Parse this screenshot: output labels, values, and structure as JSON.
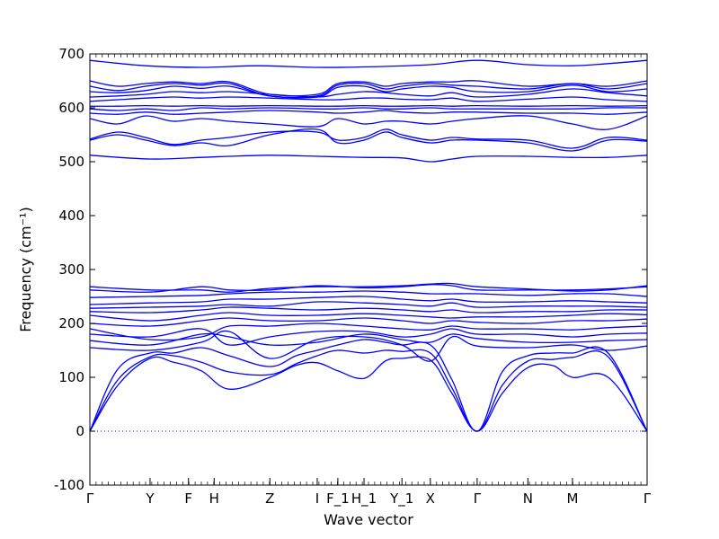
{
  "chart_data": {
    "type": "line",
    "xlabel": "Wave vector",
    "ylabel": "Frequency (cm⁻¹)",
    "ylim": [
      -100,
      700
    ],
    "xlim": [
      0,
      1
    ],
    "y_ticks": [
      -100,
      0,
      100,
      200,
      300,
      400,
      500,
      600,
      700
    ],
    "x_ticks": [
      {
        "label": "Γ",
        "x": 0.0
      },
      {
        "label": "Y",
        "x": 0.108
      },
      {
        "label": "F",
        "x": 0.177
      },
      {
        "label": "H",
        "x": 0.223
      },
      {
        "label": "Z",
        "x": 0.323
      },
      {
        "label": "I",
        "x": 0.408
      },
      {
        "label": "F_1",
        "x": 0.445
      },
      {
        "label": "H_1",
        "x": 0.492
      },
      {
        "label": "Y_1",
        "x": 0.56
      },
      {
        "label": "X",
        "x": 0.611
      },
      {
        "label": "Γ",
        "x": 0.695
      },
      {
        "label": "N",
        "x": 0.786
      },
      {
        "label": "M",
        "x": 0.866
      },
      {
        "label": "Γ",
        "x": 1.0
      }
    ],
    "zero_line": {
      "y": 0,
      "style": "dotted"
    },
    "series_color": "#0000ff",
    "series": [
      {
        "x": [
          0,
          0.05,
          0.108,
          0.15,
          0.2,
          0.25,
          0.323,
          0.37,
          0.408,
          0.445,
          0.492,
          0.53,
          0.56,
          0.611,
          0.65,
          0.695,
          0.74,
          0.786,
          0.83,
          0.866,
          0.93,
          1.0
        ],
        "values": [
          0,
          85,
          135,
          128,
          112,
          78,
          100,
          122,
          127,
          112,
          98,
          130,
          135,
          132,
          70,
          0,
          70,
          118,
          122,
          100,
          100,
          0
        ]
      },
      {
        "x": [
          0,
          0.05,
          0.108,
          0.15,
          0.2,
          0.25,
          0.323,
          0.37,
          0.408,
          0.445,
          0.492,
          0.53,
          0.56,
          0.611,
          0.65,
          0.695,
          0.74,
          0.786,
          0.83,
          0.866,
          0.93,
          1.0
        ],
        "values": [
          0,
          95,
          138,
          140,
          128,
          110,
          105,
          125,
          140,
          150,
          145,
          150,
          148,
          145,
          80,
          0,
          85,
          130,
          133,
          137,
          138,
          0
        ]
      },
      {
        "x": [
          0,
          0.05,
          0.108,
          0.15,
          0.2,
          0.25,
          0.323,
          0.37,
          0.408,
          0.445,
          0.492,
          0.53,
          0.56,
          0.611,
          0.65,
          0.695,
          0.74,
          0.786,
          0.83,
          0.866,
          0.93,
          1.0
        ],
        "values": [
          0,
          115,
          145,
          145,
          155,
          140,
          120,
          140,
          150,
          160,
          170,
          165,
          160,
          160,
          95,
          0,
          110,
          140,
          145,
          145,
          145,
          0
        ]
      },
      {
        "x": [
          0,
          0.108,
          0.2,
          0.25,
          0.323,
          0.408,
          0.492,
          0.56,
          0.611,
          0.65,
          0.695,
          0.786,
          0.866,
          0.93,
          1.0
        ],
        "values": [
          155,
          150,
          165,
          185,
          135,
          170,
          175,
          160,
          130,
          175,
          158,
          155,
          160,
          150,
          158
        ]
      },
      {
        "x": [
          0,
          0.108,
          0.2,
          0.25,
          0.323,
          0.408,
          0.492,
          0.56,
          0.611,
          0.65,
          0.695,
          0.786,
          0.866,
          0.93,
          1.0
        ],
        "values": [
          168,
          160,
          180,
          175,
          160,
          165,
          180,
          170,
          165,
          180,
          172,
          165,
          165,
          168,
          170
        ]
      },
      {
        "x": [
          0,
          0.108,
          0.2,
          0.25,
          0.323,
          0.408,
          0.492,
          0.56,
          0.611,
          0.65,
          0.695,
          0.786,
          0.866,
          0.93,
          1.0
        ],
        "values": [
          180,
          175,
          190,
          160,
          175,
          185,
          185,
          175,
          180,
          190,
          180,
          180,
          175,
          180,
          182
        ]
      },
      {
        "x": [
          0,
          0.108,
          0.2,
          0.25,
          0.323,
          0.408,
          0.492,
          0.56,
          0.611,
          0.65,
          0.695,
          0.786,
          0.866,
          0.93,
          1.0
        ],
        "values": [
          190,
          170,
          175,
          195,
          195,
          200,
          195,
          190,
          188,
          195,
          190,
          190,
          188,
          192,
          195
        ]
      },
      {
        "x": [
          0,
          0.108,
          0.2,
          0.25,
          0.323,
          0.408,
          0.492,
          0.56,
          0.611,
          0.65,
          0.695,
          0.786,
          0.866,
          0.93,
          1.0
        ],
        "values": [
          200,
          195,
          205,
          210,
          205,
          205,
          210,
          205,
          200,
          205,
          202,
          200,
          205,
          205,
          208
        ]
      },
      {
        "x": [
          0,
          0.108,
          0.2,
          0.25,
          0.323,
          0.408,
          0.492,
          0.56,
          0.611,
          0.65,
          0.695,
          0.786,
          0.866,
          0.93,
          1.0
        ],
        "values": [
          215,
          205,
          215,
          220,
          215,
          215,
          218,
          215,
          212,
          210,
          212,
          212,
          215,
          218,
          216
        ]
      },
      {
        "x": [
          0,
          0.108,
          0.2,
          0.25,
          0.323,
          0.408,
          0.492,
          0.56,
          0.611,
          0.65,
          0.695,
          0.786,
          0.866,
          0.93,
          1.0
        ],
        "values": [
          222,
          220,
          225,
          230,
          228,
          225,
          228,
          225,
          222,
          225,
          220,
          222,
          222,
          225,
          225
        ]
      },
      {
        "x": [
          0,
          0.108,
          0.2,
          0.25,
          0.323,
          0.408,
          0.492,
          0.56,
          0.611,
          0.65,
          0.695,
          0.786,
          0.866,
          0.93,
          1.0
        ],
        "values": [
          228,
          230,
          232,
          235,
          232,
          240,
          238,
          235,
          232,
          238,
          230,
          232,
          232,
          232,
          230
        ]
      },
      {
        "x": [
          0,
          0.108,
          0.2,
          0.25,
          0.323,
          0.408,
          0.492,
          0.56,
          0.611,
          0.65,
          0.695,
          0.786,
          0.866,
          0.93,
          1.0
        ],
        "values": [
          235,
          238,
          240,
          245,
          245,
          248,
          250,
          245,
          242,
          245,
          240,
          240,
          242,
          240,
          238
        ]
      },
      {
        "x": [
          0,
          0.108,
          0.2,
          0.25,
          0.323,
          0.408,
          0.492,
          0.56,
          0.611,
          0.65,
          0.695,
          0.786,
          0.866,
          0.93,
          1.0
        ],
        "values": [
          248,
          250,
          252,
          255,
          258,
          258,
          260,
          258,
          255,
          255,
          255,
          252,
          255,
          255,
          250
        ]
      },
      {
        "x": [
          0,
          0.108,
          0.2,
          0.25,
          0.323,
          0.408,
          0.492,
          0.56,
          0.611,
          0.65,
          0.695,
          0.786,
          0.866,
          0.93,
          1.0
        ],
        "values": [
          262,
          258,
          268,
          262,
          262,
          270,
          266,
          268,
          272,
          270,
          262,
          262,
          262,
          264,
          268
        ]
      },
      {
        "x": [
          0,
          0.108,
          0.2,
          0.25,
          0.323,
          0.408,
          0.492,
          0.56,
          0.611,
          0.65,
          0.695,
          0.786,
          0.866,
          0.93,
          1.0
        ],
        "values": [
          268,
          262,
          262,
          258,
          265,
          268,
          268,
          270,
          273,
          274,
          268,
          264,
          260,
          262,
          270
        ]
      },
      {
        "x": [
          0,
          0.108,
          0.2,
          0.25,
          0.323,
          0.408,
          0.492,
          0.56,
          0.611,
          0.65,
          0.695,
          0.786,
          0.866,
          0.93,
          1.0
        ],
        "values": [
          512,
          505,
          508,
          510,
          512,
          510,
          508,
          507,
          500,
          505,
          510,
          510,
          508,
          508,
          512
        ]
      },
      {
        "x": [
          0,
          0.05,
          0.1,
          0.15,
          0.2,
          0.25,
          0.323,
          0.408,
          0.445,
          0.492,
          0.53,
          0.56,
          0.611,
          0.65,
          0.695,
          0.786,
          0.866,
          0.93,
          1.0
        ],
        "values": [
          540,
          550,
          540,
          530,
          535,
          530,
          550,
          560,
          535,
          540,
          555,
          545,
          535,
          540,
          540,
          535,
          520,
          540,
          538
        ]
      },
      {
        "x": [
          0,
          0.05,
          0.1,
          0.15,
          0.2,
          0.25,
          0.323,
          0.408,
          0.445,
          0.492,
          0.53,
          0.56,
          0.611,
          0.65,
          0.695,
          0.786,
          0.866,
          0.93,
          1.0
        ],
        "values": [
          542,
          555,
          545,
          532,
          540,
          545,
          555,
          555,
          540,
          545,
          560,
          550,
          540,
          545,
          542,
          540,
          525,
          545,
          540
        ]
      },
      {
        "x": [
          0,
          0.05,
          0.1,
          0.15,
          0.2,
          0.25,
          0.323,
          0.408,
          0.445,
          0.492,
          0.53,
          0.56,
          0.611,
          0.65,
          0.695,
          0.786,
          0.866,
          0.93,
          1.0
        ],
        "values": [
          580,
          570,
          585,
          575,
          580,
          575,
          570,
          565,
          580,
          570,
          575,
          575,
          570,
          575,
          580,
          585,
          570,
          560,
          585
        ]
      },
      {
        "x": [
          0,
          0.05,
          0.1,
          0.15,
          0.2,
          0.25,
          0.323,
          0.408,
          0.445,
          0.492,
          0.53,
          0.56,
          0.611,
          0.65,
          0.695,
          0.786,
          0.866,
          0.93,
          1.0
        ],
        "values": [
          590,
          588,
          592,
          588,
          590,
          592,
          595,
          592,
          590,
          592,
          595,
          592,
          590,
          592,
          592,
          590,
          590,
          588,
          592
        ]
      },
      {
        "x": [
          0,
          0.05,
          0.1,
          0.15,
          0.2,
          0.25,
          0.323,
          0.408,
          0.445,
          0.492,
          0.53,
          0.56,
          0.611,
          0.65,
          0.695,
          0.786,
          0.866,
          0.93,
          1.0
        ],
        "values": [
          598,
          595,
          598,
          595,
          600,
          598,
          600,
          598,
          598,
          600,
          598,
          598,
          600,
          598,
          598,
          598,
          598,
          600,
          600
        ]
      },
      {
        "x": [
          0,
          0.05,
          0.1,
          0.15,
          0.2,
          0.25,
          0.323,
          0.408,
          0.445,
          0.492,
          0.53,
          0.56,
          0.611,
          0.65,
          0.695,
          0.786,
          0.866,
          0.93,
          1.0
        ],
        "values": [
          603,
          603,
          604,
          603,
          604,
          603,
          604,
          603,
          603,
          604,
          603,
          603,
          604,
          603,
          604,
          603,
          604,
          603,
          604
        ]
      },
      {
        "x": [
          0,
          0.05,
          0.1,
          0.15,
          0.2,
          0.25,
          0.323,
          0.408,
          0.445,
          0.492,
          0.53,
          0.56,
          0.611,
          0.65,
          0.695,
          0.786,
          0.866,
          0.93,
          1.0
        ],
        "values": [
          612,
          615,
          618,
          620,
          618,
          620,
          618,
          615,
          615,
          618,
          618,
          616,
          615,
          618,
          612,
          616,
          620,
          615,
          612
        ]
      },
      {
        "x": [
          0,
          0.05,
          0.1,
          0.15,
          0.2,
          0.25,
          0.323,
          0.408,
          0.445,
          0.492,
          0.53,
          0.56,
          0.611,
          0.65,
          0.695,
          0.786,
          0.866,
          0.93,
          1.0
        ],
        "values": [
          620,
          622,
          625,
          630,
          628,
          630,
          625,
          620,
          625,
          630,
          628,
          625,
          622,
          628,
          620,
          625,
          635,
          628,
          622
        ]
      },
      {
        "x": [
          0,
          0.05,
          0.1,
          0.15,
          0.2,
          0.25,
          0.323,
          0.408,
          0.445,
          0.492,
          0.53,
          0.56,
          0.611,
          0.65,
          0.695,
          0.786,
          0.866,
          0.93,
          1.0
        ],
        "values": [
          630,
          628,
          632,
          640,
          636,
          640,
          622,
          620,
          638,
          640,
          630,
          635,
          640,
          638,
          630,
          630,
          642,
          630,
          635
        ]
      },
      {
        "x": [
          0,
          0.05,
          0.1,
          0.15,
          0.2,
          0.25,
          0.323,
          0.408,
          0.445,
          0.492,
          0.53,
          0.56,
          0.611,
          0.65,
          0.695,
          0.786,
          0.866,
          0.93,
          1.0
        ],
        "values": [
          640,
          632,
          640,
          645,
          642,
          645,
          622,
          622,
          642,
          645,
          635,
          640,
          645,
          642,
          640,
          635,
          645,
          635,
          645
        ]
      },
      {
        "x": [
          0,
          0.05,
          0.1,
          0.15,
          0.2,
          0.25,
          0.323,
          0.408,
          0.445,
          0.492,
          0.53,
          0.56,
          0.611,
          0.65,
          0.695,
          0.786,
          0.866,
          0.93,
          1.0
        ],
        "values": [
          650,
          640,
          645,
          648,
          645,
          648,
          625,
          625,
          645,
          648,
          640,
          645,
          648,
          648,
          650,
          640,
          645,
          640,
          650
        ]
      },
      {
        "x": [
          0,
          0.1,
          0.2,
          0.3,
          0.408,
          0.5,
          0.611,
          0.695,
          0.786,
          0.866,
          0.93,
          1.0
        ],
        "values": [
          688,
          678,
          675,
          678,
          675,
          676,
          680,
          688,
          680,
          678,
          682,
          688
        ]
      }
    ]
  }
}
